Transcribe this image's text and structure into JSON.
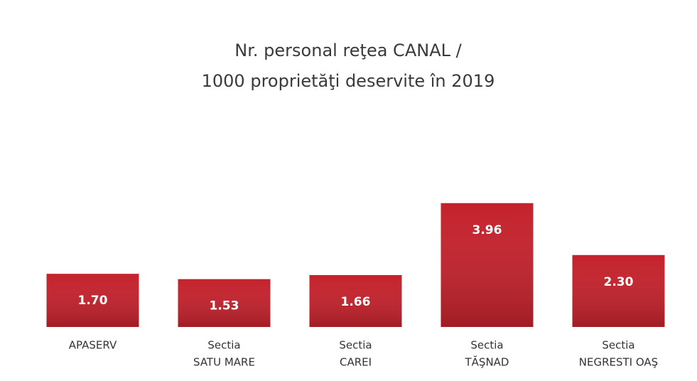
{
  "chart_data": {
    "type": "bar",
    "title": [
      "Nr. personal reţea CANAL /",
      "1000 proprietăţi deservite în 2019"
    ],
    "categories": [
      [
        "APASERV"
      ],
      [
        "Sectia",
        "SATU MARE"
      ],
      [
        "Sectia",
        "CAREI"
      ],
      [
        "Sectia",
        "TĂŞNAD"
      ],
      [
        "Sectia",
        "NEGRESTI OAŞ"
      ]
    ],
    "values": [
      1.7,
      1.53,
      1.66,
      3.96,
      2.3
    ],
    "value_labels": [
      "1.70",
      "1.53",
      "1.66",
      "3.96",
      "2.30"
    ],
    "color": "#c4222c"
  }
}
